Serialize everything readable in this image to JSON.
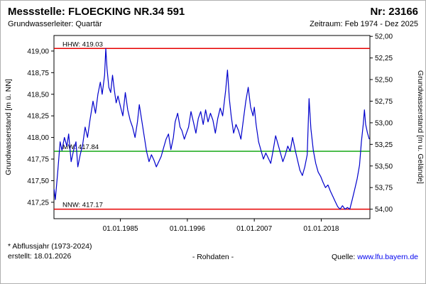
{
  "header": {
    "title": "Messstelle: FLOECKING NR.34 591",
    "number": "Nr: 23166",
    "aquifer": "Grundwasserleiter: Quartär",
    "period": "Zeitraum: Feb 1974 - Dez 2025"
  },
  "footer": {
    "footnote": "* Abflussjahr (1973-2024)",
    "created": "erstellt: 18.01.2026",
    "center": "- Rohdaten -",
    "source_label": "Quelle:",
    "source_link": "www.lfu.bayern.de"
  },
  "colors": {
    "reference_red": "#e60000",
    "reference_green": "#00a000",
    "series_blue": "#0000cc",
    "link_blue": "#0000ee",
    "axis_black": "#000000"
  },
  "chart_data": {
    "type": "line",
    "title": "",
    "ylabel_left": "Grundwasserstand [m ü. NN]",
    "ylabel_right": "Grundwasserstand [m u. Gelände]",
    "xlim": [
      1974.08,
      2026.0
    ],
    "ylim": [
      417.06,
      419.18
    ],
    "ground_elevation": 471.17,
    "grid": false,
    "x_ticks": [
      {
        "value": 1985,
        "label": "01.01.1985"
      },
      {
        "value": 1996,
        "label": "01.01.1996"
      },
      {
        "value": 2007,
        "label": "01.01.2007"
      },
      {
        "value": 2018,
        "label": "01.01.2018"
      }
    ],
    "y_ticks_left": [
      {
        "value": 419.0,
        "label": "419,00"
      },
      {
        "value": 418.75,
        "label": "418,75"
      },
      {
        "value": 418.5,
        "label": "418,50"
      },
      {
        "value": 418.25,
        "label": "418,25"
      },
      {
        "value": 418.0,
        "label": "418,00"
      },
      {
        "value": 417.75,
        "label": "417,75"
      },
      {
        "value": 417.5,
        "label": "417,50"
      },
      {
        "value": 417.25,
        "label": "417,25"
      }
    ],
    "y_ticks_right": [
      {
        "value": 52.0,
        "label": "52,00"
      },
      {
        "value": 52.25,
        "label": "52,25"
      },
      {
        "value": 52.5,
        "label": "52,50"
      },
      {
        "value": 52.75,
        "label": "52,75"
      },
      {
        "value": 53.0,
        "label": "53,00"
      },
      {
        "value": 53.25,
        "label": "53,25"
      },
      {
        "value": 53.5,
        "label": "53,50"
      },
      {
        "value": 53.75,
        "label": "53,75"
      },
      {
        "value": 54.0,
        "label": "54,00"
      }
    ],
    "reference_lines": [
      {
        "name": "HHW",
        "value": 419.03,
        "label": "HHW: 419.03",
        "color": "#e60000"
      },
      {
        "name": "MW",
        "value": 417.84,
        "label": "MW: 417.84",
        "color": "#00a000"
      },
      {
        "name": "NNW",
        "value": 417.17,
        "label": "NNW: 417.17",
        "color": "#e60000"
      }
    ],
    "series": [
      {
        "name": "Grundwasserstand Rohdaten",
        "color": "#0000cc",
        "points": [
          [
            1974.1,
            417.4
          ],
          [
            1974.3,
            417.28
          ],
          [
            1974.7,
            417.6
          ],
          [
            1975.1,
            417.95
          ],
          [
            1975.4,
            417.85
          ],
          [
            1975.8,
            418.0
          ],
          [
            1976.2,
            417.9
          ],
          [
            1976.5,
            418.04
          ],
          [
            1976.9,
            417.72
          ],
          [
            1977.3,
            417.85
          ],
          [
            1977.7,
            417.95
          ],
          [
            1978.0,
            417.66
          ],
          [
            1978.4,
            417.8
          ],
          [
            1978.8,
            417.92
          ],
          [
            1979.2,
            418.12
          ],
          [
            1979.6,
            418.0
          ],
          [
            1980.0,
            418.2
          ],
          [
            1980.5,
            418.42
          ],
          [
            1980.9,
            418.28
          ],
          [
            1981.3,
            418.5
          ],
          [
            1981.7,
            418.64
          ],
          [
            1982.0,
            418.5
          ],
          [
            1982.4,
            418.72
          ],
          [
            1982.6,
            419.03
          ],
          [
            1982.8,
            418.8
          ],
          [
            1983.1,
            418.58
          ],
          [
            1983.4,
            418.52
          ],
          [
            1983.7,
            418.72
          ],
          [
            1984.0,
            418.55
          ],
          [
            1984.3,
            418.4
          ],
          [
            1984.6,
            418.48
          ],
          [
            1985.0,
            418.36
          ],
          [
            1985.4,
            418.25
          ],
          [
            1985.8,
            418.52
          ],
          [
            1986.2,
            418.32
          ],
          [
            1986.6,
            418.2
          ],
          [
            1987.0,
            418.12
          ],
          [
            1987.4,
            418.0
          ],
          [
            1987.8,
            418.18
          ],
          [
            1988.1,
            418.38
          ],
          [
            1988.5,
            418.2
          ],
          [
            1988.9,
            418.02
          ],
          [
            1989.3,
            417.84
          ],
          [
            1989.7,
            417.72
          ],
          [
            1990.1,
            417.8
          ],
          [
            1990.5,
            417.74
          ],
          [
            1990.9,
            417.66
          ],
          [
            1991.3,
            417.72
          ],
          [
            1991.7,
            417.78
          ],
          [
            1992.1,
            417.88
          ],
          [
            1992.5,
            417.98
          ],
          [
            1992.9,
            418.04
          ],
          [
            1993.3,
            417.86
          ],
          [
            1993.7,
            418.0
          ],
          [
            1994.0,
            418.18
          ],
          [
            1994.4,
            418.28
          ],
          [
            1994.8,
            418.12
          ],
          [
            1995.1,
            418.08
          ],
          [
            1995.5,
            417.98
          ],
          [
            1995.9,
            418.06
          ],
          [
            1996.2,
            418.12
          ],
          [
            1996.6,
            418.3
          ],
          [
            1997.0,
            418.18
          ],
          [
            1997.4,
            418.05
          ],
          [
            1997.8,
            418.22
          ],
          [
            1998.2,
            418.3
          ],
          [
            1998.6,
            418.15
          ],
          [
            1999.0,
            418.32
          ],
          [
            1999.4,
            418.18
          ],
          [
            1999.8,
            418.28
          ],
          [
            2000.2,
            418.2
          ],
          [
            2000.6,
            418.05
          ],
          [
            2001.0,
            418.22
          ],
          [
            2001.4,
            418.34
          ],
          [
            2001.8,
            418.25
          ],
          [
            2002.3,
            418.55
          ],
          [
            2002.6,
            418.78
          ],
          [
            2002.9,
            418.45
          ],
          [
            2003.2,
            418.25
          ],
          [
            2003.6,
            418.05
          ],
          [
            2004.0,
            418.15
          ],
          [
            2004.4,
            418.08
          ],
          [
            2004.8,
            417.98
          ],
          [
            2005.2,
            418.2
          ],
          [
            2005.6,
            418.42
          ],
          [
            2006.0,
            418.58
          ],
          [
            2006.4,
            418.35
          ],
          [
            2006.8,
            418.25
          ],
          [
            2007.0,
            418.35
          ],
          [
            2007.3,
            418.15
          ],
          [
            2007.7,
            417.95
          ],
          [
            2008.1,
            417.85
          ],
          [
            2008.5,
            417.75
          ],
          [
            2008.9,
            417.82
          ],
          [
            2009.3,
            417.76
          ],
          [
            2009.7,
            417.7
          ],
          [
            2010.1,
            417.85
          ],
          [
            2010.5,
            418.02
          ],
          [
            2010.9,
            417.92
          ],
          [
            2011.3,
            417.82
          ],
          [
            2011.7,
            417.72
          ],
          [
            2012.1,
            417.8
          ],
          [
            2012.5,
            417.9
          ],
          [
            2012.9,
            417.84
          ],
          [
            2013.3,
            418.0
          ],
          [
            2013.7,
            417.86
          ],
          [
            2014.1,
            417.74
          ],
          [
            2014.5,
            417.62
          ],
          [
            2014.9,
            417.56
          ],
          [
            2015.3,
            417.66
          ],
          [
            2015.7,
            417.8
          ],
          [
            2016.0,
            418.45
          ],
          [
            2016.3,
            418.1
          ],
          [
            2016.7,
            417.85
          ],
          [
            2017.1,
            417.7
          ],
          [
            2017.5,
            417.6
          ],
          [
            2017.9,
            417.55
          ],
          [
            2018.3,
            417.48
          ],
          [
            2018.7,
            417.42
          ],
          [
            2019.1,
            417.45
          ],
          [
            2019.5,
            417.38
          ],
          [
            2019.9,
            417.32
          ],
          [
            2020.3,
            417.26
          ],
          [
            2020.7,
            417.2
          ],
          [
            2021.1,
            417.17
          ],
          [
            2021.5,
            417.21
          ],
          [
            2021.9,
            417.17
          ],
          [
            2022.3,
            417.19
          ],
          [
            2022.7,
            417.17
          ],
          [
            2023.1,
            417.28
          ],
          [
            2023.5,
            417.4
          ],
          [
            2023.9,
            417.52
          ],
          [
            2024.3,
            417.68
          ],
          [
            2024.6,
            417.95
          ],
          [
            2024.9,
            418.15
          ],
          [
            2025.1,
            418.32
          ],
          [
            2025.3,
            418.15
          ],
          [
            2025.6,
            418.05
          ],
          [
            2025.9,
            417.98
          ]
        ]
      }
    ]
  }
}
